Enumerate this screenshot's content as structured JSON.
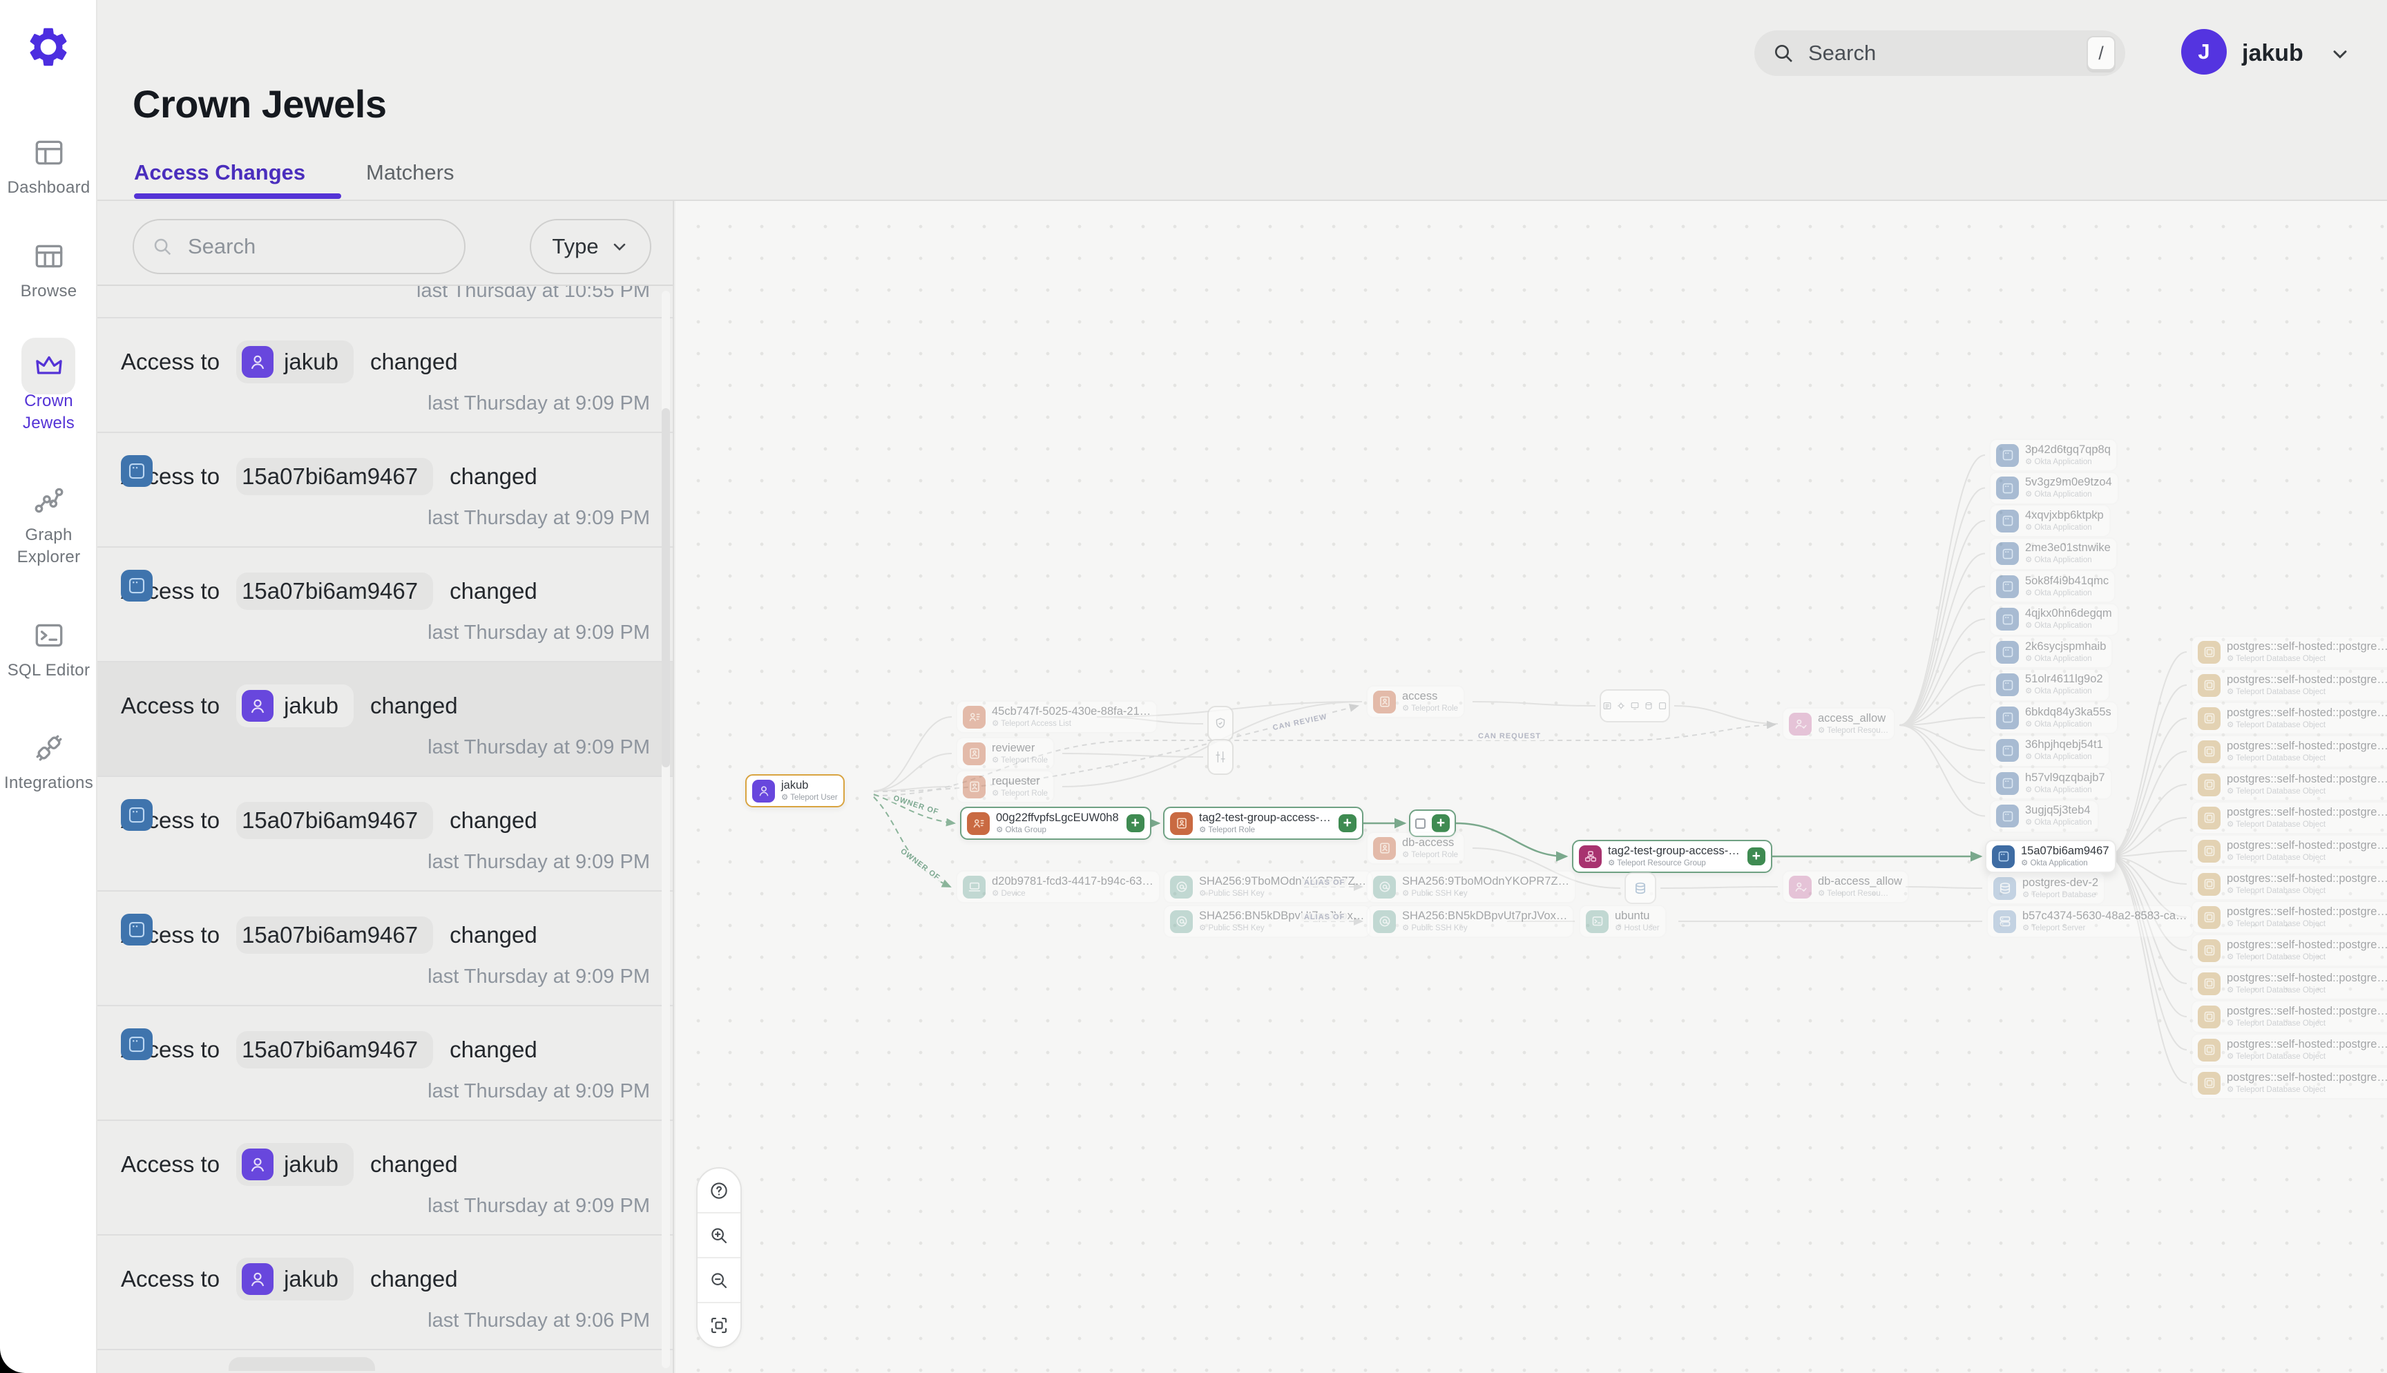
{
  "colors": {
    "accent_purple": "#5433d6",
    "brand_gear": "#4c2ee0",
    "avatar_purple": "#5434e0",
    "chip_user_icon": "#6847dd",
    "chip_app_icon": "#3f74ad",
    "plus_badge_green": "#3f8b52",
    "node_border_green": "#6fa183",
    "node_border_amber": "#d9a441"
  },
  "header": {
    "title": "Crown Jewels"
  },
  "topbar": {
    "search_placeholder": "Search",
    "search_shortcut": "/",
    "user_initial": "J",
    "user_name": "jakub"
  },
  "sidebar": {
    "items": [
      {
        "id": "dashboard",
        "label": "Dashboard",
        "active": false
      },
      {
        "id": "browse",
        "label": "Browse",
        "active": false
      },
      {
        "id": "crown-jewels",
        "label": "Crown\nJewels",
        "active": true
      },
      {
        "id": "graph-explorer",
        "label": "Graph\nExplorer",
        "active": false
      },
      {
        "id": "sql-editor",
        "label": "SQL Editor",
        "active": false
      },
      {
        "id": "integrations",
        "label": "Integrations",
        "active": false
      }
    ]
  },
  "tabs": [
    {
      "label": "Access Changes",
      "active": true
    },
    {
      "label": "Matchers",
      "active": false
    }
  ],
  "changes_panel": {
    "search_placeholder": "Search",
    "type_filter_label": "Type",
    "row_prefix": "Access to",
    "clipped_top_timestamp": "last Thursday at 10:55 PM",
    "rows": [
      {
        "entity": "jakub",
        "kind": "user",
        "action": "changed",
        "time": "last Thursday at 9:09 PM",
        "selected": false
      },
      {
        "entity": "15a07bi6am9467",
        "kind": "app",
        "action": "changed",
        "time": "last Thursday at 9:09 PM",
        "selected": false
      },
      {
        "entity": "15a07bi6am9467",
        "kind": "app",
        "action": "changed",
        "time": "last Thursday at 9:09 PM",
        "selected": false
      },
      {
        "entity": "jakub",
        "kind": "user",
        "action": "changed",
        "time": "last Thursday at 9:09 PM",
        "selected": true
      },
      {
        "entity": "15a07bi6am9467",
        "kind": "app",
        "action": "changed",
        "time": "last Thursday at 9:09 PM",
        "selected": false
      },
      {
        "entity": "15a07bi6am9467",
        "kind": "app",
        "action": "changed",
        "time": "last Thursday at 9:09 PM",
        "selected": false
      },
      {
        "entity": "15a07bi6am9467",
        "kind": "app",
        "action": "changed",
        "time": "last Thursday at 9:09 PM",
        "selected": false
      },
      {
        "entity": "jakub",
        "kind": "user",
        "action": "changed",
        "time": "last Thursday at 9:09 PM",
        "selected": false
      },
      {
        "entity": "jakub",
        "kind": "user",
        "action": "changed",
        "time": "last Thursday at 9:06 PM",
        "selected": false
      }
    ],
    "has_clipped_bottom_row": true
  },
  "graph": {
    "nodes": [
      {
        "id": "jakub",
        "title": "jakub",
        "sub": "Teleport User",
        "type": "user",
        "state": "solid",
        "border": "amber"
      },
      {
        "id": "okta-group",
        "title": "00g22ffvpfsLgcEUW0h8",
        "sub": "Okta Group",
        "type": "group",
        "state": "solid",
        "border": "green",
        "plus": true
      },
      {
        "id": "role-tag2",
        "title": "tag2-test-group-access-…",
        "sub": "Teleport Role",
        "type": "role",
        "state": "solid",
        "border": "green",
        "plus": true
      },
      {
        "id": "collapsed",
        "title": "",
        "sub": "",
        "type": "mini",
        "state": "solid",
        "border": "green",
        "plus": true,
        "mini": true
      },
      {
        "id": "rg-tag2",
        "title": "tag2-test-group-access-…",
        "sub": "Teleport Resource Group",
        "type": "rgroup",
        "state": "solid",
        "border": "green",
        "plus": true
      },
      {
        "id": "app-15a07",
        "title": "15a07bi6am9467",
        "sub": "Okta Application",
        "type": "app",
        "state": "solid",
        "border": "plain"
      },
      {
        "id": "acl-45cb",
        "title": "45cb747f-5025-430e-88fa-21…",
        "sub": "Teleport Access List",
        "type": "group",
        "state": "faded"
      },
      {
        "id": "reviewer",
        "title": "reviewer",
        "sub": "Teleport Role",
        "type": "role",
        "state": "faded"
      },
      {
        "id": "requester",
        "title": "requester",
        "sub": "Teleport Role",
        "type": "role",
        "state": "faded"
      },
      {
        "id": "device-d20b",
        "title": "d20b9781-fcd3-4417-b94c-63…",
        "sub": "Device",
        "type": "device",
        "state": "faded"
      },
      {
        "id": "access",
        "title": "access",
        "sub": "Teleport Role",
        "type": "role",
        "state": "faded"
      },
      {
        "id": "db-access",
        "title": "db-access",
        "sub": "Teleport Role",
        "type": "role",
        "state": "faded"
      },
      {
        "id": "key-a1",
        "title": "SHA256:9TboMOdnYKOPR7Z…",
        "sub": "Public SSH Key",
        "type": "key",
        "state": "faded"
      },
      {
        "id": "key-a2",
        "title": "SHA256:BN5kDBpvUt7prJVox…",
        "sub": "Public SSH Key",
        "type": "key",
        "state": "faded"
      },
      {
        "id": "key-b1",
        "title": "SHA256:9TboMOdnYKOPR7Z…",
        "sub": "Public SSH Key",
        "type": "key",
        "state": "faded"
      },
      {
        "id": "key-b2",
        "title": "SHA256:BN5kDBpvUt7prJVox…",
        "sub": "Public SSH Key",
        "type": "key",
        "state": "faded"
      },
      {
        "id": "ubuntu",
        "title": "ubuntu",
        "sub": "Host User",
        "type": "host",
        "state": "faded"
      },
      {
        "id": "access-allow",
        "title": "access_allow",
        "sub": "Teleport Resou…",
        "type": "allow",
        "state": "faded"
      },
      {
        "id": "db-access-allow",
        "title": "db-access_allow",
        "sub": "Teleport Resou…",
        "type": "allow",
        "state": "faded"
      },
      {
        "id": "postgres-dev-2",
        "title": "postgres-dev-2",
        "sub": "Teleport Database",
        "type": "db",
        "state": "faded"
      },
      {
        "id": "server-b57c",
        "title": "b57c4374-5630-48a2-8583-ca…",
        "sub": "Teleport Server",
        "type": "server",
        "state": "faded"
      }
    ],
    "okta_apps": [
      "3p42d6tgq7qp8q",
      "5v3gz9m0e9tzo4",
      "4xqvjxbp6ktpkp",
      "2me3e01stnwike",
      "5ok8f4i9b41qmc",
      "4qjkx0hn6degqm",
      "2k6sycjspmhaib",
      "51olr4611lg9o2",
      "6bkdq84y3ka55s",
      "36hpjhqebj54t1",
      "h57vl9qzqbajb7",
      "3ugjq5j3teb4"
    ],
    "okta_apps_sub": "Okta Application",
    "db_object_title": "postgres::self-hosted::postgre…",
    "db_object_sub": "Teleport Database Object",
    "db_object_count": 14,
    "edge_labels": [
      {
        "text": "OWNER OF",
        "color": "green"
      },
      {
        "text": "OWNER OF",
        "color": "green"
      },
      {
        "text": "CAN REVIEW",
        "color": "gray"
      },
      {
        "text": "CAN REQUEST",
        "color": "gray"
      },
      {
        "text": "ALIAS OF",
        "color": "gray"
      },
      {
        "text": "ALIAS OF",
        "color": "gray"
      }
    ],
    "controls": [
      {
        "id": "help",
        "label": "help"
      },
      {
        "id": "zoom-in",
        "label": "zoom in"
      },
      {
        "id": "zoom-out",
        "label": "zoom out"
      },
      {
        "id": "fit-view",
        "label": "fit view"
      }
    ]
  }
}
